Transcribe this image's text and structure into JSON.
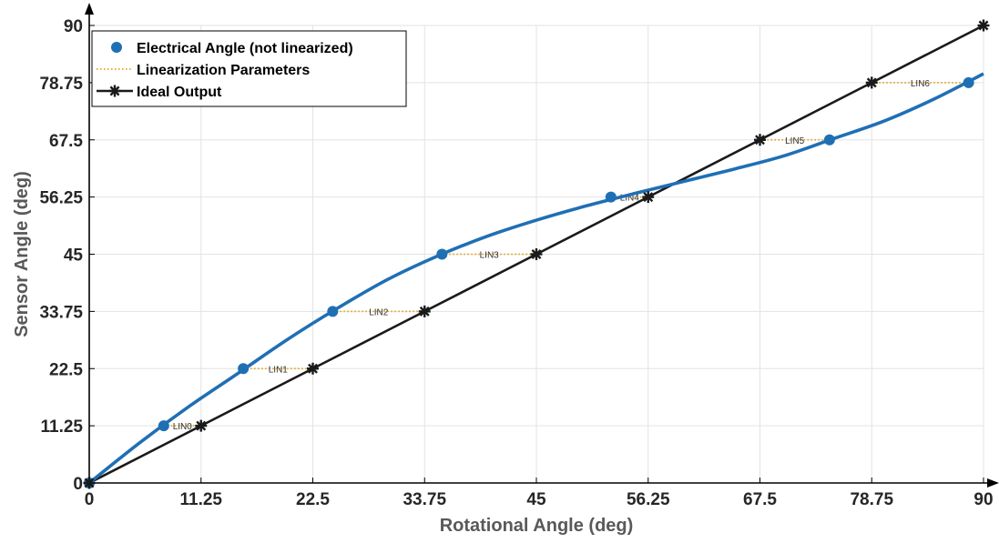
{
  "chart_data": {
    "type": "line",
    "title": "",
    "xlabel": "Rotational Angle (deg)",
    "ylabel": "Sensor Angle (deg)",
    "xlim": [
      0,
      90
    ],
    "ylim": [
      0,
      90
    ],
    "xticks": [
      "0",
      "11.25",
      "22.5",
      "33.75",
      "45",
      "56.25",
      "67.5",
      "78.75",
      "90"
    ],
    "yticks": [
      "0",
      "11.25",
      "22.5",
      "33.75",
      "45",
      "56.25",
      "67.5",
      "78.75",
      "90"
    ],
    "grid": true,
    "legend_position": "top-left",
    "colors": {
      "electrical": "#1f6fb4",
      "linearization": "#e3a21a",
      "ideal": "#1a1a1a"
    },
    "series": [
      {
        "name": "Electrical Angle (not linearized)",
        "kind": "line-markers",
        "x": [
          0,
          7.5,
          15.5,
          24.5,
          35.5,
          52.5,
          74.5,
          88.5
        ],
        "y": [
          0,
          11.25,
          22.5,
          33.75,
          45,
          56.25,
          67.5,
          78.75
        ],
        "curve": [
          [
            0,
            0
          ],
          [
            5,
            7.8
          ],
          [
            10,
            15.0
          ],
          [
            15,
            21.6
          ],
          [
            20,
            28.3
          ],
          [
            25,
            34.4
          ],
          [
            30,
            40.0
          ],
          [
            35,
            44.6
          ],
          [
            40,
            48.5
          ],
          [
            45,
            51.7
          ],
          [
            50,
            54.5
          ],
          [
            55,
            57.0
          ],
          [
            60,
            59.4
          ],
          [
            65,
            61.8
          ],
          [
            70,
            64.4
          ],
          [
            75,
            67.8
          ],
          [
            80,
            71.2
          ],
          [
            85,
            75.5
          ],
          [
            90,
            80.5
          ]
        ]
      },
      {
        "name": "Linearization Parameters",
        "kind": "dotted-segments",
        "segments": [
          {
            "label": "LIN0",
            "x1": 7.5,
            "x2": 11.25,
            "y": 11.25
          },
          {
            "label": "LIN1",
            "x1": 15.5,
            "x2": 22.5,
            "y": 22.5
          },
          {
            "label": "LIN2",
            "x1": 24.5,
            "x2": 33.75,
            "y": 33.75
          },
          {
            "label": "LIN3",
            "x1": 35.5,
            "x2": 45,
            "y": 45
          },
          {
            "label": "LIN4",
            "x1": 52.5,
            "x2": 56.25,
            "y": 56.25
          },
          {
            "label": "LIN5",
            "x1": 67.5,
            "x2": 74.5,
            "y": 67.5
          },
          {
            "label": "LIN6",
            "x1": 78.75,
            "x2": 88.5,
            "y": 78.75
          }
        ]
      },
      {
        "name": "Ideal Output",
        "kind": "line-stars",
        "x": [
          0,
          11.25,
          22.5,
          33.75,
          45,
          56.25,
          67.5,
          78.75,
          90
        ],
        "y": [
          0,
          11.25,
          22.5,
          33.75,
          45,
          56.25,
          67.5,
          78.75,
          90
        ]
      }
    ]
  }
}
